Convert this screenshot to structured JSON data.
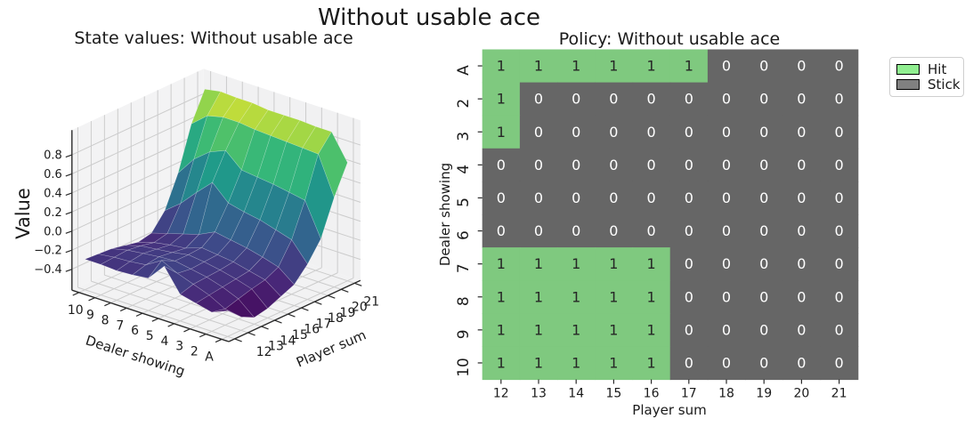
{
  "figure": {
    "suptitle": "Without usable ace",
    "background": "#ffffff"
  },
  "chart_data": [
    {
      "id": "state_values_surface",
      "type": "surface",
      "title": "State values: Without usable ace",
      "xlabel": "Player sum",
      "ylabel": "Dealer showing",
      "zlabel": "Value",
      "x_ticklabels": [
        "12",
        "13",
        "14",
        "15",
        "16",
        "17",
        "18",
        "19",
        "20",
        "21"
      ],
      "y_ticklabels": [
        "A",
        "2",
        "3",
        "4",
        "5",
        "6",
        "7",
        "8",
        "9",
        "10"
      ],
      "z_ticks": [
        0.8,
        0.6,
        0.4,
        0.2,
        0.0,
        -0.2,
        -0.4
      ],
      "z_ticklabels": [
        "0.8",
        "0.6",
        "0.4",
        "0.2",
        "0.0",
        "−0.2",
        "−0.4"
      ],
      "zlim": [
        -0.62,
        1.06
      ],
      "colormap": "viridis",
      "view": {
        "elev": 20,
        "azim": 220
      },
      "grid": true,
      "rows": "Dealer showing A to 10",
      "cols": "Player sum 12 to 21",
      "values": [
        [
          -0.35,
          -0.48,
          -0.55,
          -0.52,
          -0.46,
          -0.4,
          -0.25,
          -0.05,
          0.32,
          0.62
        ],
        [
          -0.42,
          -0.45,
          -0.41,
          -0.37,
          -0.34,
          -0.27,
          -0.05,
          0.3,
          0.72,
          0.89
        ],
        [
          -0.38,
          -0.36,
          -0.34,
          -0.32,
          -0.3,
          -0.22,
          0.0,
          0.33,
          0.73,
          0.89
        ],
        [
          -0.34,
          -0.3,
          -0.29,
          -0.28,
          -0.26,
          -0.18,
          0.05,
          0.36,
          0.74,
          0.9
        ],
        [
          -0.1,
          -0.24,
          -0.26,
          -0.25,
          -0.24,
          -0.15,
          0.08,
          0.38,
          0.75,
          0.9
        ],
        [
          -0.28,
          -0.16,
          -0.23,
          -0.23,
          -0.22,
          -0.12,
          0.12,
          0.4,
          0.76,
          0.9
        ],
        [
          -0.3,
          -0.26,
          -0.24,
          -0.26,
          -0.28,
          -0.2,
          0.28,
          0.55,
          0.78,
          0.92
        ],
        [
          -0.31,
          -0.28,
          -0.26,
          -0.28,
          -0.3,
          -0.25,
          0.12,
          0.48,
          0.78,
          0.92
        ],
        [
          -0.3,
          -0.29,
          -0.28,
          -0.3,
          -0.33,
          -0.3,
          -0.05,
          0.35,
          0.74,
          0.93
        ],
        [
          -0.3,
          -0.31,
          -0.32,
          -0.35,
          -0.38,
          -0.35,
          -0.18,
          0.15,
          0.6,
          0.9
        ]
      ]
    },
    {
      "id": "policy_heatmap",
      "type": "heatmap",
      "title": "Policy: Without usable ace",
      "xlabel": "Player sum",
      "ylabel": "Dealer showing",
      "x_ticklabels": [
        "12",
        "13",
        "14",
        "15",
        "16",
        "17",
        "18",
        "19",
        "20",
        "21"
      ],
      "y_ticklabels": [
        "A",
        "2",
        "3",
        "4",
        "5",
        "6",
        "7",
        "8",
        "9",
        "10"
      ],
      "rows": "Dealer showing A to 10",
      "cols": "Player sum 12 to 21",
      "values": [
        [
          1,
          1,
          1,
          1,
          1,
          1,
          0,
          0,
          0,
          0
        ],
        [
          1,
          0,
          0,
          0,
          0,
          0,
          0,
          0,
          0,
          0
        ],
        [
          1,
          0,
          0,
          0,
          0,
          0,
          0,
          0,
          0,
          0
        ],
        [
          0,
          0,
          0,
          0,
          0,
          0,
          0,
          0,
          0,
          0
        ],
        [
          0,
          0,
          0,
          0,
          0,
          0,
          0,
          0,
          0,
          0
        ],
        [
          0,
          0,
          0,
          0,
          0,
          0,
          0,
          0,
          0,
          0
        ],
        [
          1,
          1,
          1,
          1,
          1,
          0,
          0,
          0,
          0,
          0
        ],
        [
          1,
          1,
          1,
          1,
          1,
          0,
          0,
          0,
          0,
          0
        ],
        [
          1,
          1,
          1,
          1,
          1,
          0,
          0,
          0,
          0,
          0
        ],
        [
          1,
          1,
          1,
          1,
          1,
          0,
          0,
          0,
          0,
          0
        ]
      ],
      "cell_colors": {
        "1": "#7fc97f",
        "0": "#666666"
      },
      "annot_colors": {
        "1": "#262626",
        "0": "#ffffff"
      },
      "legend": {
        "items": [
          {
            "label": "Hit",
            "color": "#90ee90"
          },
          {
            "label": "Stick",
            "color": "#808080"
          }
        ]
      }
    }
  ]
}
